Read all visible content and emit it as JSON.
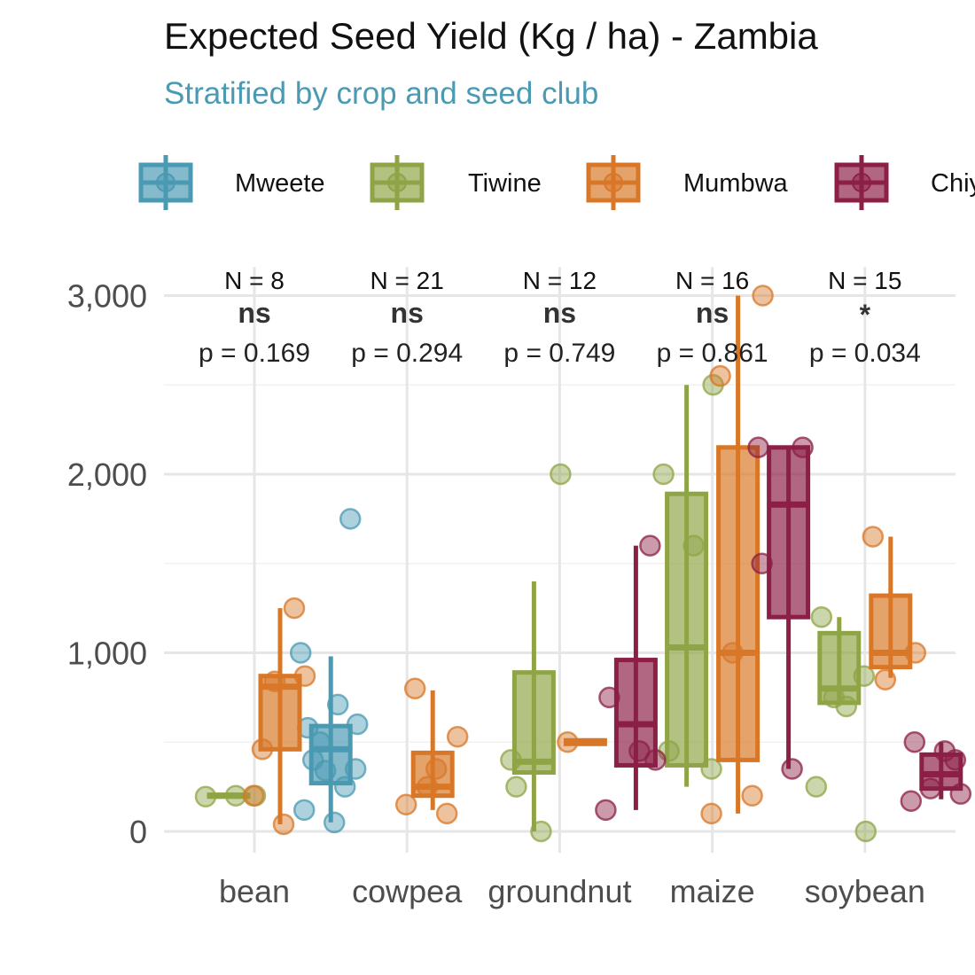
{
  "title": "Expected Seed Yield (Kg / ha) - Zambia",
  "subtitle": "Stratified by crop and seed club",
  "colors": {
    "subtitle": "#4a9ab3",
    "grid_major": "#e6e6e6",
    "grid_minor": "#f1f1f1"
  },
  "legend": {
    "position": "top",
    "entries": [
      {
        "label": "Mweete",
        "color": "#4a9ab3"
      },
      {
        "label": "Tiwine",
        "color": "#8fa446"
      },
      {
        "label": "Mumbwa",
        "color": "#d87727"
      },
      {
        "label": "Chiy",
        "color": "#8c1f45"
      }
    ]
  },
  "chart_data": {
    "type": "boxplot",
    "xlabel": "",
    "ylabel": "",
    "ylim": [
      -120,
      3160
    ],
    "yticks": [
      0,
      1000,
      2000,
      3000
    ],
    "ytick_labels": [
      "0",
      "1,000",
      "2,000",
      "3,000"
    ],
    "grid": true,
    "categories": [
      "bean",
      "cowpea",
      "groundnut",
      "maize",
      "soybean"
    ],
    "annotations": [
      {
        "n": "N = 8",
        "sig": "ns",
        "p": "p = 0.169"
      },
      {
        "n": "N = 21",
        "sig": "ns",
        "p": "p = 0.294"
      },
      {
        "n": "N = 12",
        "sig": "ns",
        "p": "p = 0.749"
      },
      {
        "n": "N = 16",
        "sig": "ns",
        "p": "p = 0.861"
      },
      {
        "n": "N = 15",
        "sig": "*",
        "p": "p = 0.034"
      }
    ],
    "series": [
      {
        "name": "Mweete",
        "color": "#4a9ab3",
        "boxes": [
          null,
          {
            "min": 50,
            "q1": 270,
            "median": 460,
            "q3": 590,
            "max": 980
          },
          null,
          null,
          null
        ],
        "points": [
          [],
          [
            1000,
            1750,
            500,
            600,
            580,
            710,
            400,
            350,
            340,
            250,
            120,
            50
          ],
          [],
          [],
          []
        ]
      },
      {
        "name": "Tiwine",
        "color": "#8fa446",
        "boxes": [
          {
            "min": 190,
            "q1": 195,
            "median": 200,
            "q3": 205,
            "max": 210
          },
          null,
          {
            "min": 0,
            "q1": 330,
            "median": 390,
            "q3": 890,
            "max": 1400
          },
          {
            "min": 250,
            "q1": 370,
            "median": 1030,
            "q3": 1890,
            "max": 2500
          },
          {
            "min": 720,
            "q1": 720,
            "median": 800,
            "q3": 1110,
            "max": 1200
          }
        ],
        "points": [
          [
            200,
            195,
            200
          ],
          [],
          [
            2000,
            400,
            0,
            250
          ],
          [
            2500,
            2000,
            1600,
            450,
            350
          ],
          [
            0,
            250,
            700,
            1200,
            870,
            750
          ]
        ]
      },
      {
        "name": "Mumbwa",
        "color": "#d87727",
        "boxes": [
          {
            "min": 40,
            "q1": 460,
            "median": 810,
            "q3": 870,
            "max": 1250
          },
          {
            "min": 120,
            "q1": 200,
            "median": 250,
            "q3": 440,
            "max": 790
          },
          {
            "min": 480,
            "q1": 490,
            "median": 500,
            "q3": 510,
            "max": 520
          },
          {
            "min": 100,
            "q1": 400,
            "median": 1000,
            "q3": 2150,
            "max": 3000
          },
          {
            "min": 860,
            "q1": 920,
            "median": 1000,
            "q3": 1320,
            "max": 1650
          }
        ],
        "points": [
          [
            460,
            870,
            840,
            1250,
            200,
            40
          ],
          [
            800,
            530,
            250,
            100,
            150,
            350
          ],
          [
            500
          ],
          [
            2550,
            3000,
            1000,
            200,
            100
          ],
          [
            1650,
            1000,
            850
          ]
        ]
      },
      {
        "name": "Chiy",
        "color": "#8c1f45",
        "boxes": [
          null,
          null,
          {
            "min": 120,
            "q1": 370,
            "median": 600,
            "q3": 960,
            "max": 1600
          },
          {
            "min": 350,
            "q1": 1200,
            "median": 1830,
            "q3": 2150,
            "max": 2150
          },
          {
            "min": 180,
            "q1": 240,
            "median": 320,
            "q3": 430,
            "max": 500
          }
        ],
        "points": [
          [],
          [],
          [
            1600,
            750,
            450,
            120,
            400
          ],
          [
            2150,
            1500,
            350,
            2150
          ],
          [
            400,
            500,
            450,
            170,
            210,
            240
          ]
        ]
      }
    ]
  }
}
